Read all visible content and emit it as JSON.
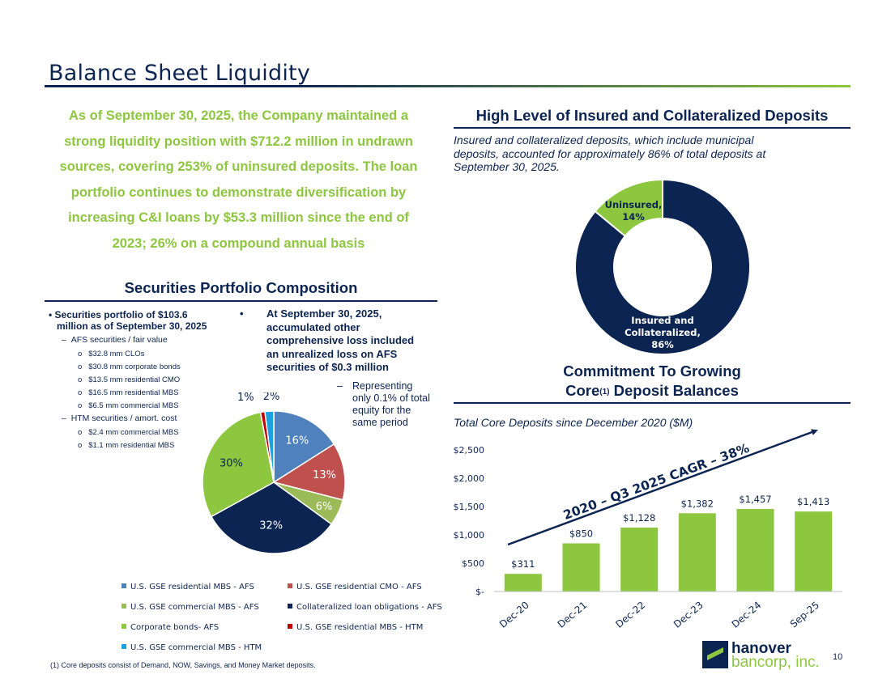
{
  "title": "Balance Sheet Liquidity",
  "intro": {
    "lines": [
      "As of September 30, 2025, the Company maintained a",
      "strong liquidity position with $712.2 million in undrawn",
      "sources, covering 253% of uninsured deposits. The loan",
      "portfolio continues to demonstrate diversification by",
      "increasing C&I loans by $53.3 million since the end of",
      "2023; 26% on a compound annual basis"
    ]
  },
  "deposits_section": {
    "heading": "High Level of Insured and Collateralized Deposits",
    "note_lines": [
      "Insured and collateralized deposits, which include municipal",
      "deposits, accounted for approximately 86% of total deposits at",
      "September 30, 2025."
    ]
  },
  "securities_section": {
    "heading": "Securities Portfolio Composition",
    "left_bullets": {
      "main": [
        "Securities portfolio of $103.6",
        "million as of September 30, 2025"
      ],
      "afs_label": "AFS securities / fair value",
      "afs_items": [
        "$32.8 mm CLOs",
        "$30.8 mm corporate bonds",
        "$13.5 mm residential CMO",
        "$16.5 mm residential MBS",
        "$6.5 mm commercial MBS"
      ],
      "htm_label": "HTM securities / amort. cost",
      "htm_items": [
        "$2.4 mm commercial MBS",
        "$1.1 mm residential MBS"
      ]
    },
    "right_bullet_lines": [
      "At September 30, 2025,",
      "accumulated other",
      "comprehensive loss included",
      "an unrealized loss on AFS",
      "securities of $0.3 million"
    ],
    "sub_bullet_lines": [
      "Representing",
      "only 0.1% of total",
      "equity for the",
      "same period"
    ]
  },
  "core_section": {
    "heading_line1": "Commitment To Growing",
    "heading_core": "Core",
    "heading_sup": "(1)",
    "heading_rest": " Deposit Balances",
    "note": "Total Core Deposits since December 2020 ($M)"
  },
  "chart_data": [
    {
      "type": "pie",
      "name": "Securities Portfolio Composition",
      "labels": [
        "U.S. GSE residential MBS - AFS",
        "U.S. GSE residential CMO - AFS",
        "U.S. GSE commercial MBS -  AFS",
        "Collateralized loan obligations - AFS",
        "Corporate bonds- AFS",
        "U.S. GSE residential MBS - HTM",
        "U.S. GSE commercial MBS - HTM"
      ],
      "values": [
        16,
        13,
        6,
        32,
        30,
        1,
        2
      ],
      "value_labels": [
        "16%",
        "13%",
        "6%",
        "32%",
        "30%",
        "1%",
        "2%"
      ],
      "colors": [
        "#4f81bd",
        "#c0504d",
        "#9bbb59",
        "#0c2452",
        "#8dc63f",
        "#c00000",
        "#1ba1e2"
      ],
      "legend": "bottom"
    },
    {
      "type": "pie",
      "subtype": "donut",
      "name": "Insured vs Uninsured Deposits",
      "labels": [
        "Insured and Collateralized,",
        "Uninsured,"
      ],
      "values": [
        86,
        14
      ],
      "value_labels": [
        "86%",
        "14%"
      ],
      "colors": [
        "#0c2452",
        "#8dc63f"
      ]
    },
    {
      "type": "bar",
      "title": "Total Core Deposits since December 2020 ($M)",
      "categories": [
        "Dec-20",
        "Dec-21",
        "Dec-22",
        "Dec-23",
        "Dec-24",
        "Sep-25"
      ],
      "values": [
        311,
        850,
        1128,
        1382,
        1457,
        1413
      ],
      "value_labels": [
        "$311",
        "$850",
        "$1,128",
        "$1,382",
        "$1,457",
        "$1,413"
      ],
      "ylim": [
        0,
        2500
      ],
      "yticks": [
        0,
        500,
        1000,
        1500,
        2000,
        2500
      ],
      "ytick_labels": [
        "$-",
        "$500",
        "$1,000",
        "$1,500",
        "$2,000",
        "$2,500"
      ],
      "color": "#8dc63f",
      "annotation": "2020 – Q3 2025 CAGR – 38%",
      "grid": false
    }
  ],
  "colors": {
    "navy": "#0c2452",
    "green": "#8dc63f"
  },
  "footnote": "(1) Core deposits consist of Demand, NOW, Savings, and Money Market deposits.",
  "logo": {
    "line1": "hanover",
    "line2": "bancorp, inc."
  },
  "page_number": "10"
}
